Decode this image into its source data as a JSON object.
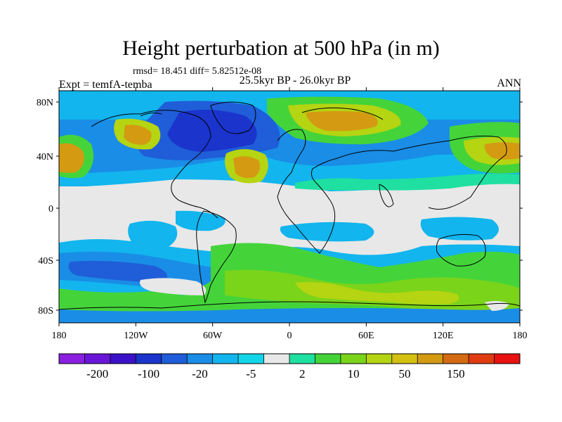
{
  "title": "Height perturbation at 500 hPa (in m)",
  "stats": "rmsd= 18.451 diff= 5.82512e-08",
  "experiment": "Expt = temfA-temba",
  "period": "25.5kyr BP - 26.0kyr BP",
  "season": "ANN",
  "lat_ticks": [
    "80N",
    "40N",
    "0",
    "40S",
    "80S"
  ],
  "lon_ticks": [
    "180",
    "120W",
    "60W",
    "0",
    "60E",
    "120E",
    "180"
  ],
  "colorbar": {
    "colors": [
      "#8b20e0",
      "#6a16d8",
      "#3c12c8",
      "#1a34cc",
      "#1f5ed8",
      "#1a8de6",
      "#12b5ee",
      "#12d6e8",
      "#e8e8e8",
      "#1fe0a0",
      "#44d43a",
      "#7ad41a",
      "#b5d412",
      "#d4c012",
      "#d49a12",
      "#d46a12",
      "#e03c12",
      "#e81210"
    ],
    "labels": [
      "-200",
      "-100",
      "-20",
      "-5",
      "2",
      "10",
      "50",
      "150"
    ]
  },
  "map_colors": {
    "neutral": "#e8e8e8",
    "light_blue": "#12b5ee",
    "mid_blue": "#1a8de6",
    "blue": "#1f5ed8",
    "deep_blue": "#1a34cc",
    "green": "#44d43a",
    "light_green": "#7ad41a",
    "yellow_green": "#b5d412",
    "orange": "#d49a12",
    "teal": "#1fe0a0",
    "coast": "#000000"
  }
}
